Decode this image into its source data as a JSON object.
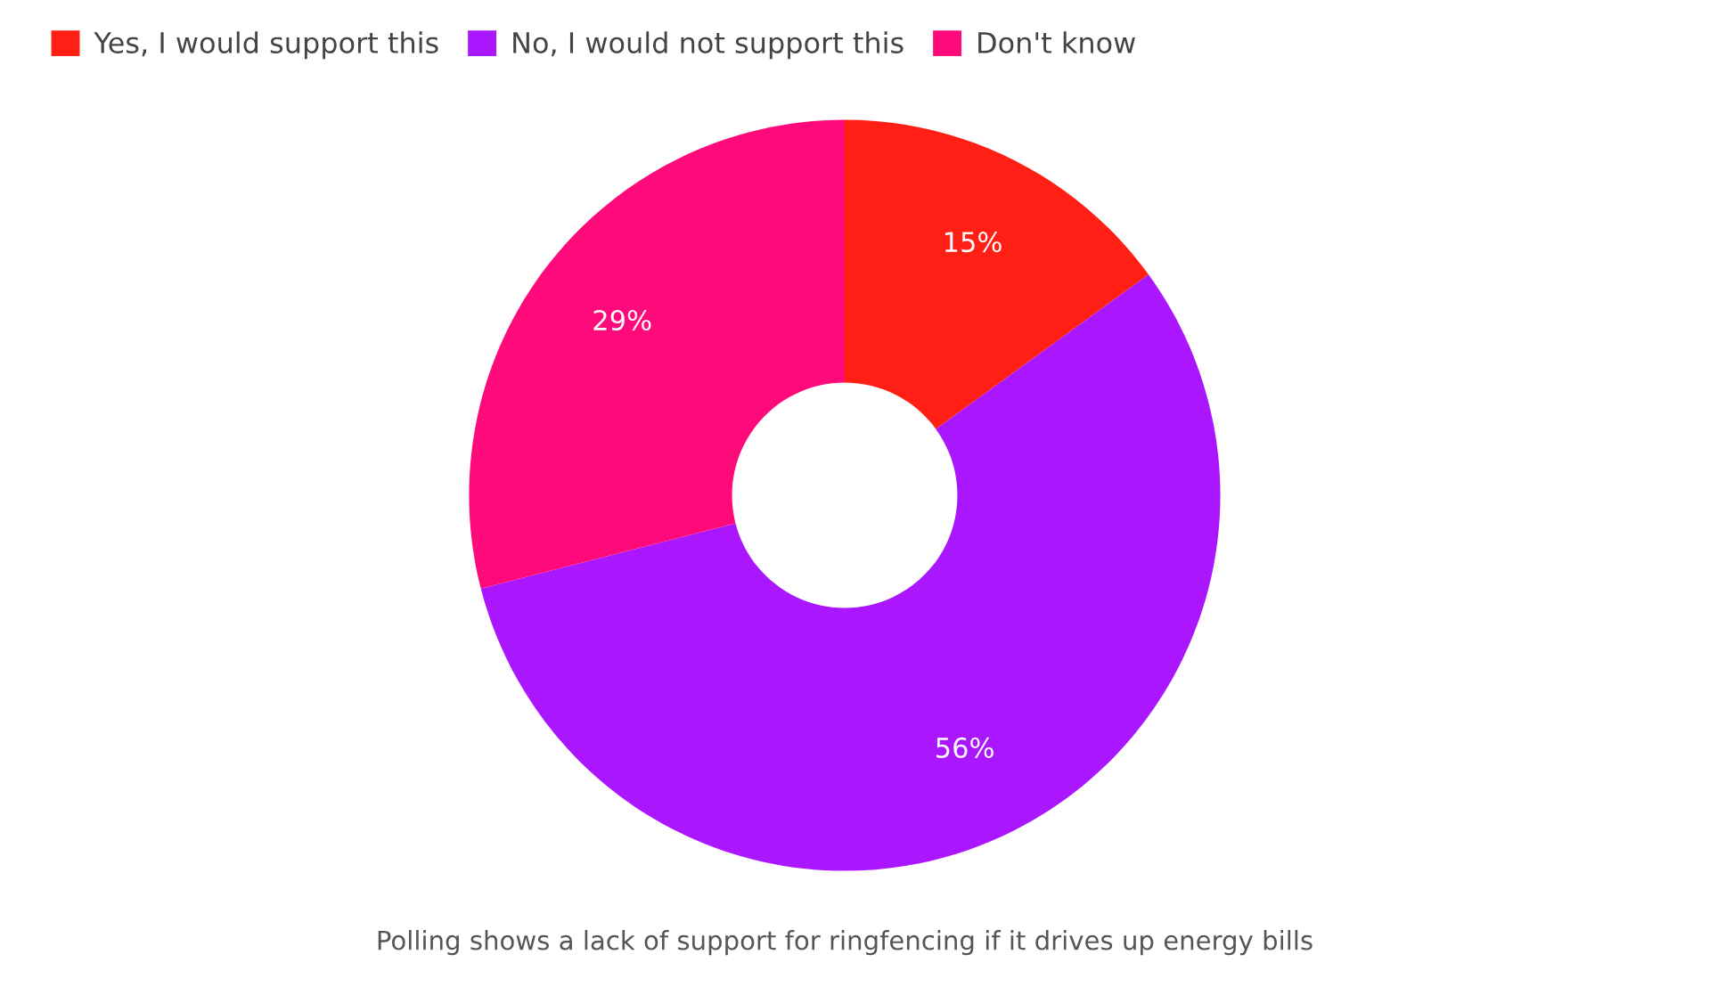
{
  "chart_data": {
    "type": "donut",
    "categories": [
      "Yes, I would support this",
      "No, I would not support this",
      "Don't know"
    ],
    "values": [
      15,
      56,
      29
    ],
    "colors": [
      "#ff1f14",
      "#aa17ff",
      "#ff0a7a"
    ],
    "value_labels": [
      "15%",
      "56%",
      "29%"
    ],
    "legend": "top left",
    "annotations": [
      "Polling shows a lack of support for ringfencing if it drives up energy bills"
    ]
  }
}
